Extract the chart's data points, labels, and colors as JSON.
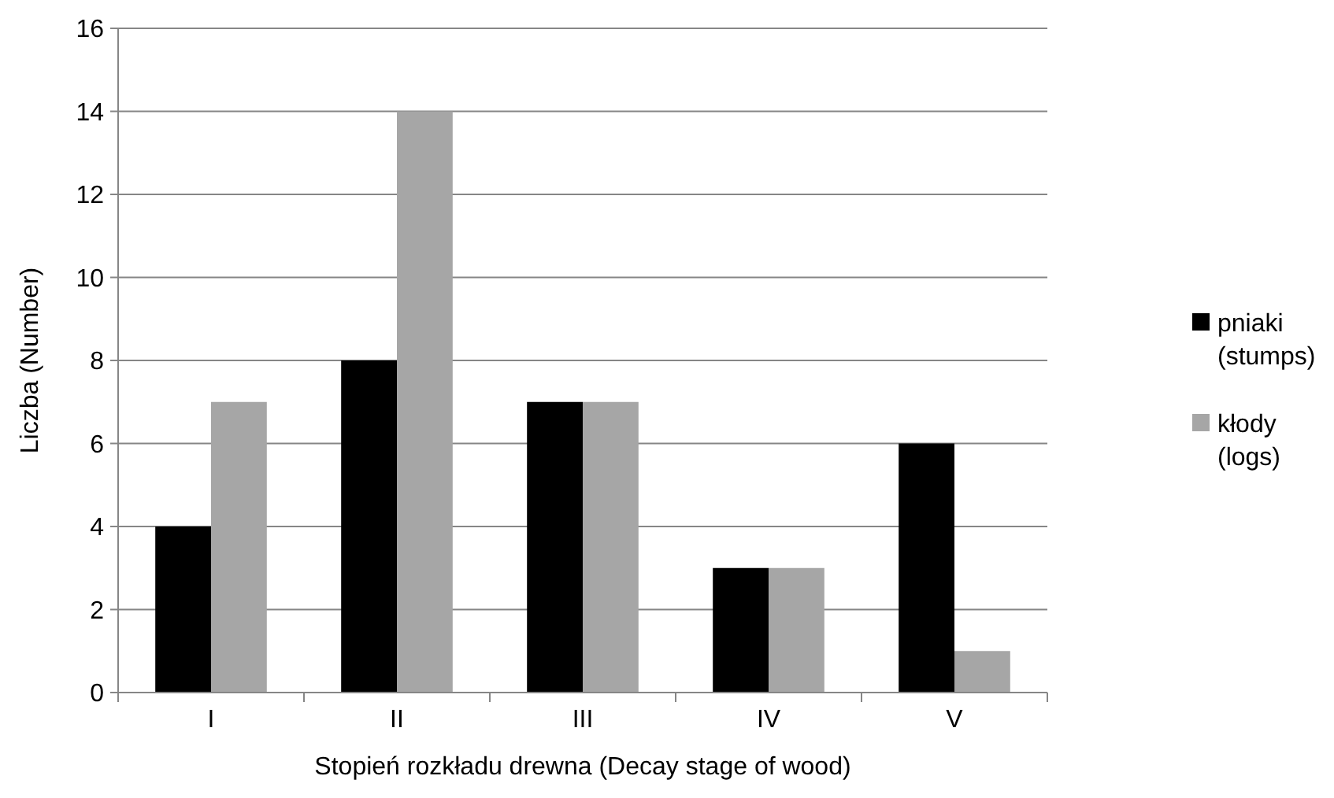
{
  "chart_data": {
    "type": "bar",
    "xlabel": "Stopień rozkładu drewna (Decay stage of wood)",
    "ylabel": "Liczba (Number)",
    "categories": [
      "I",
      "II",
      "III",
      "IV",
      "V"
    ],
    "series": [
      {
        "name": "pniaki (stumps)",
        "color": "#000000",
        "values": [
          4,
          8,
          7,
          3,
          6
        ]
      },
      {
        "name": "kłody (logs)",
        "color": "#a6a6a6",
        "values": [
          7,
          14,
          7,
          3,
          1
        ]
      }
    ],
    "ylim": [
      0,
      16
    ],
    "yticks": [
      0,
      2,
      4,
      6,
      8,
      10,
      12,
      14,
      16
    ],
    "grid": "y",
    "legend": "right"
  }
}
